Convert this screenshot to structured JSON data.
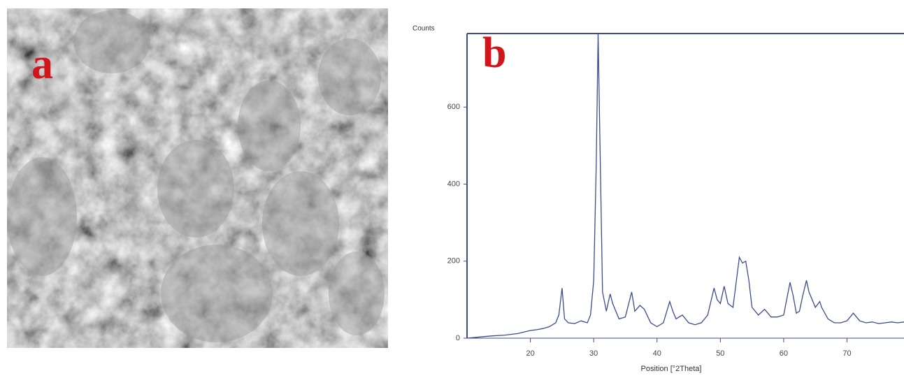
{
  "image": {
    "label": "a"
  },
  "chart_data": {
    "type": "line",
    "label": "b",
    "ylabel": "Counts",
    "xlabel": "Position [°2Theta]",
    "color": "#3d4c8c",
    "x": [
      10,
      12,
      14,
      16,
      18,
      20,
      21,
      22,
      23,
      24,
      24.5,
      25,
      25.4,
      26,
      27,
      28,
      29,
      29.5,
      30,
      30.4,
      30.7,
      31,
      31.4,
      32,
      32.6,
      33,
      34,
      35,
      36,
      36.5,
      37.3,
      38,
      39,
      40,
      41,
      42,
      42.5,
      43,
      44,
      45,
      46,
      47,
      48,
      49,
      49.5,
      50,
      50.6,
      51.2,
      52,
      53,
      53.5,
      54,
      54.5,
      55,
      56,
      57,
      58,
      59,
      60,
      61,
      61.5,
      62,
      62.5,
      63,
      63.6,
      64,
      65,
      65.7,
      66,
      67,
      68,
      69,
      70,
      71,
      72,
      73,
      74,
      75,
      76,
      77,
      78,
      79
    ],
    "values": [
      0,
      3,
      6,
      8,
      12,
      20,
      22,
      25,
      30,
      40,
      60,
      130,
      50,
      40,
      38,
      45,
      40,
      60,
      150,
      450,
      790,
      500,
      120,
      70,
      115,
      90,
      50,
      55,
      120,
      70,
      85,
      75,
      40,
      30,
      40,
      95,
      70,
      50,
      60,
      40,
      35,
      40,
      60,
      130,
      100,
      90,
      135,
      90,
      80,
      210,
      195,
      200,
      150,
      80,
      60,
      75,
      55,
      55,
      60,
      145,
      110,
      65,
      70,
      110,
      150,
      120,
      80,
      95,
      80,
      50,
      40,
      40,
      45,
      65,
      45,
      40,
      42,
      38,
      40,
      42,
      40,
      42
    ],
    "xlim": [
      10,
      79
    ],
    "ylim": [
      0,
      791
    ],
    "xticks": [
      20,
      30,
      40,
      50,
      60,
      70
    ],
    "yticks": [
      0,
      200,
      400,
      600
    ]
  }
}
